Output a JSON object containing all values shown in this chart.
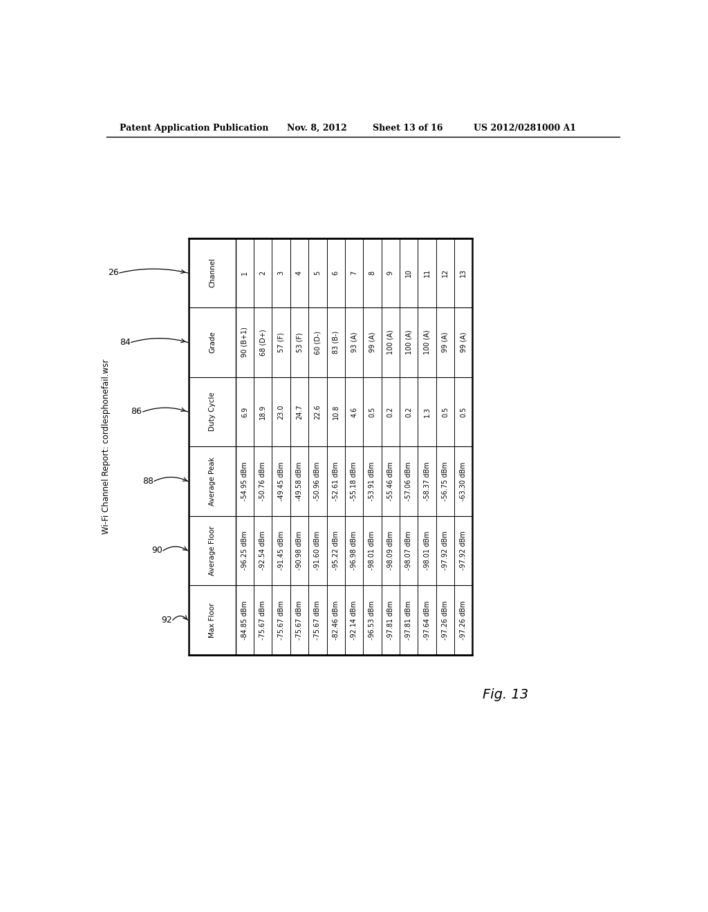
{
  "header_text": "Patent Application Publication",
  "header_date": "Nov. 8, 2012",
  "header_sheet": "Sheet 13 of 16",
  "header_patent": "US 2012/0281000 A1",
  "title": "Wi-Fi Channel Report: cordlesphonefail.wsr",
  "fig_label": "Fig. 13",
  "row_labels": [
    "Channel",
    "Grade",
    "Duty Cycle",
    "Average Peak",
    "Average Floor",
    "Max Floor"
  ],
  "col_labels": [
    "1",
    "2",
    "3",
    "4",
    "5",
    "6",
    "7",
    "8",
    "9",
    "10",
    "11",
    "12",
    "13"
  ],
  "table_data": [
    [
      "1",
      "2",
      "3",
      "4",
      "5",
      "6",
      "7",
      "8",
      "9",
      "10",
      "11",
      "12",
      "13"
    ],
    [
      "90 (B+1)",
      "68 (D+)",
      "57 (F)",
      "53 (F)",
      "60 (D-)",
      "83 (B-)",
      "93 (A)",
      "99 (A)",
      "100 (A)",
      "100 (A)",
      "100 (A)",
      "99 (A)",
      "99 (A)"
    ],
    [
      "6.9",
      "18.9",
      "23.0",
      "24.7",
      "22.6",
      "10.8",
      "4.6",
      "0.5",
      "0.2",
      "0.2",
      "1.3",
      "0.5",
      "0.5"
    ],
    [
      "-54.95 dBm",
      "-50.76 dBm",
      "-49.45 dBm",
      "-49.58 dBm",
      "-50.96 dBm",
      "-52.61 dBm",
      "-55.18 dBm",
      "-53.91 dBm",
      "-55.46 dBm",
      "-57.06 dBm",
      "-58.37 dBm",
      "-56.75 dBm",
      "-63.30 dBm"
    ],
    [
      "-96.25 dBm",
      "-92.54 dBm",
      "-91.45 dBm",
      "-90.98 dBm",
      "-91.60 dBm",
      "-95.22 dBm",
      "-96.98 dBm",
      "-98.01 dBm",
      "-98.09 dBm",
      "-98.07 dBm",
      "-98.01 dBm",
      "-97.92 dBm",
      "-97.92 dBm"
    ],
    [
      "-84.85 dBm",
      "-75.67 dBm",
      "-75.67 dBm",
      "-75.67 dBm",
      "-75.67 dBm",
      "-82.46 dBm",
      "-92.14 dBm",
      "-96.53 dBm",
      "-97.81 dBm",
      "-97.81 dBm",
      "-97.64 dBm",
      "-97.26 dBm",
      "-97.26 dBm"
    ]
  ],
  "side_labels": [
    {
      "text": "26",
      "row": 0
    },
    {
      "text": "84",
      "row": 1
    },
    {
      "text": "86",
      "row": 2
    },
    {
      "text": "88",
      "row": 3
    },
    {
      "text": "90",
      "row": 4
    },
    {
      "text": "92",
      "row": 5
    }
  ],
  "bg_color": "#ffffff",
  "text_color": "#000000"
}
